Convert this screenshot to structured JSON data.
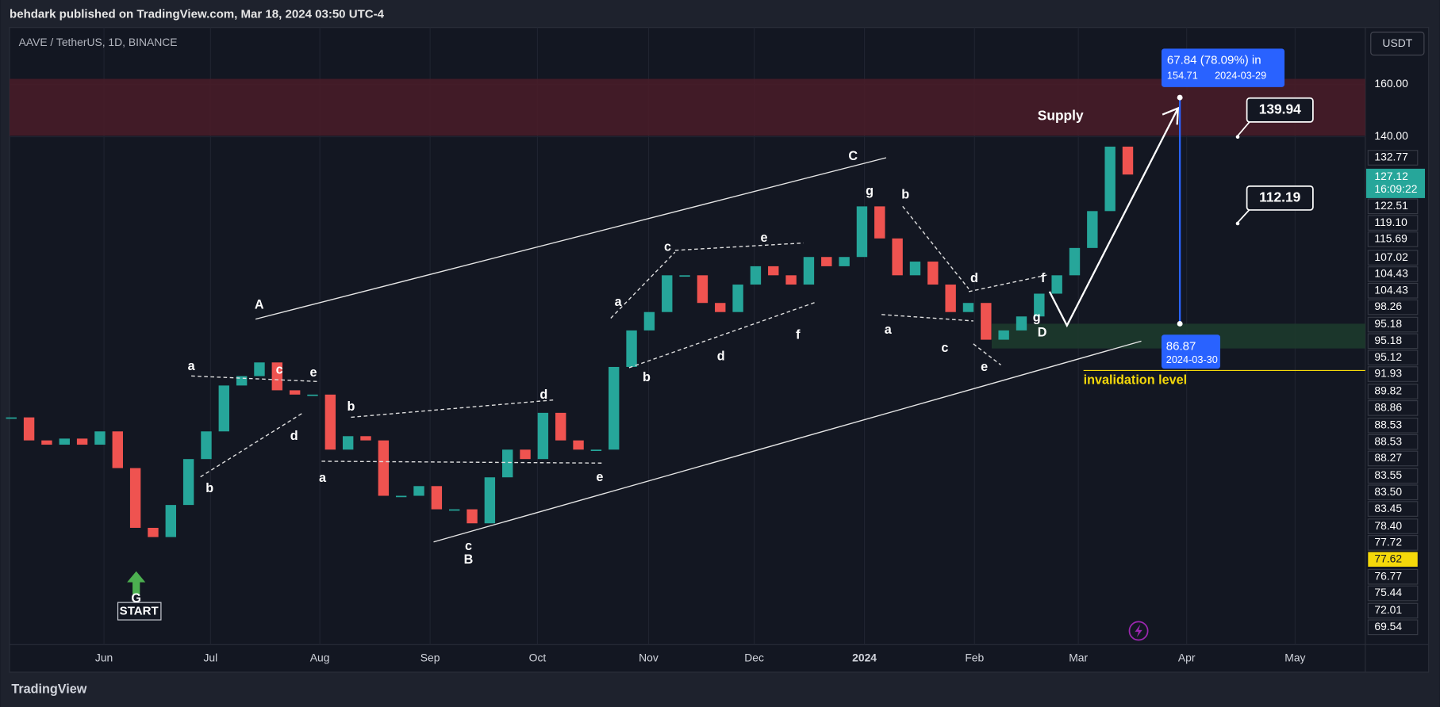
{
  "header": {
    "attribution": "behdark published on TradingView.com, Mar 18, 2024 03:50 UTC-4"
  },
  "chart_data": {
    "type": "candlestick",
    "title": "AAVE / TetherUS, 1D, BINANCE",
    "currency": "USDT",
    "values": [
      68.4,
      64.5,
      63.8,
      64.8,
      63.8,
      66.0,
      60.1,
      51.6,
      50.4,
      54.7,
      61.5,
      66.0,
      74.2,
      76.0,
      78.7,
      73.3,
      72.5,
      72.5,
      63.0,
      65.2,
      64.5,
      56.0,
      56.0,
      57.4,
      54.1,
      54.1,
      52.2,
      58.7,
      63.0,
      61.5,
      69.2,
      64.5,
      63.0,
      63.0,
      77.8,
      85.4,
      89.5,
      98.3,
      98.3,
      91.6,
      89.5,
      96.0,
      100.6,
      98.3,
      96.0,
      103.0,
      100.6,
      103.0,
      117.2,
      108.0,
      98.3,
      101.8,
      96.0,
      89.5,
      91.6,
      83.4,
      85.4,
      88.5,
      93.8,
      98.3,
      105.4,
      115.8,
      136.5,
      127.12
    ],
    "colors": {
      "up": "#26a69a",
      "down": "#ef5350"
    },
    "log_scale": true,
    "grid": true,
    "ylim": [
      38.3,
      185
    ],
    "yticks": [
      {
        "value": 160,
        "label": "160.00"
      },
      {
        "value": 140,
        "label": "140.00"
      }
    ],
    "xlim": [
      -0.1,
      76.4
    ],
    "xticks": [
      {
        "value": 5.23,
        "label": "Jun"
      },
      {
        "value": 11.24,
        "label": "Jul"
      },
      {
        "value": 17.41,
        "label": "Aug"
      },
      {
        "value": 23.63,
        "label": "Sep"
      },
      {
        "value": 29.69,
        "label": "Oct"
      },
      {
        "value": 35.96,
        "label": "Nov"
      },
      {
        "value": 41.92,
        "label": "Dec"
      },
      {
        "value": 48.14,
        "label": "2024"
      },
      {
        "value": 54.35,
        "label": "Feb"
      },
      {
        "value": 60.21,
        "label": "Mar"
      },
      {
        "value": 66.32,
        "label": "Apr"
      },
      {
        "value": 72.44,
        "label": "May"
      }
    ],
    "countdown": "16:09:22"
  },
  "price_labels": [
    "132.77",
    "122.51",
    "119.10",
    "115.69",
    "107.02",
    "104.43",
    "104.43",
    "98.26",
    "95.18",
    "95.18",
    "95.12",
    "91.93",
    "89.82",
    "88.86",
    "88.53",
    "88.53",
    "88.27",
    "83.55",
    "83.50",
    "83.45",
    "78.40",
    "77.72",
    "77.62",
    "76.77",
    "75.44",
    "72.01",
    "69.54"
  ],
  "annotations": [
    "A",
    "a",
    "b",
    "c",
    "d",
    "e",
    "a",
    "b",
    "c",
    "B",
    "d",
    "e",
    "a",
    "b",
    "c",
    "d",
    "e",
    "f",
    "C",
    "g",
    "b",
    "a",
    "c",
    "e",
    "d",
    "f",
    "g",
    "D"
  ],
  "labels": {
    "supply": "Supply",
    "invalidation": "invalidation level"
  },
  "measure": {
    "change": "67.84 (78.09%) in",
    "top_price": 154.71,
    "top_date": "2024-03-29",
    "bottom_price": 86.87,
    "bottom_date": "2024-03-30"
  },
  "callouts": [
    139.94,
    112.19
  ],
  "start": {
    "letter": "G",
    "label": "START"
  },
  "footer": {
    "brand": "TradingView"
  }
}
